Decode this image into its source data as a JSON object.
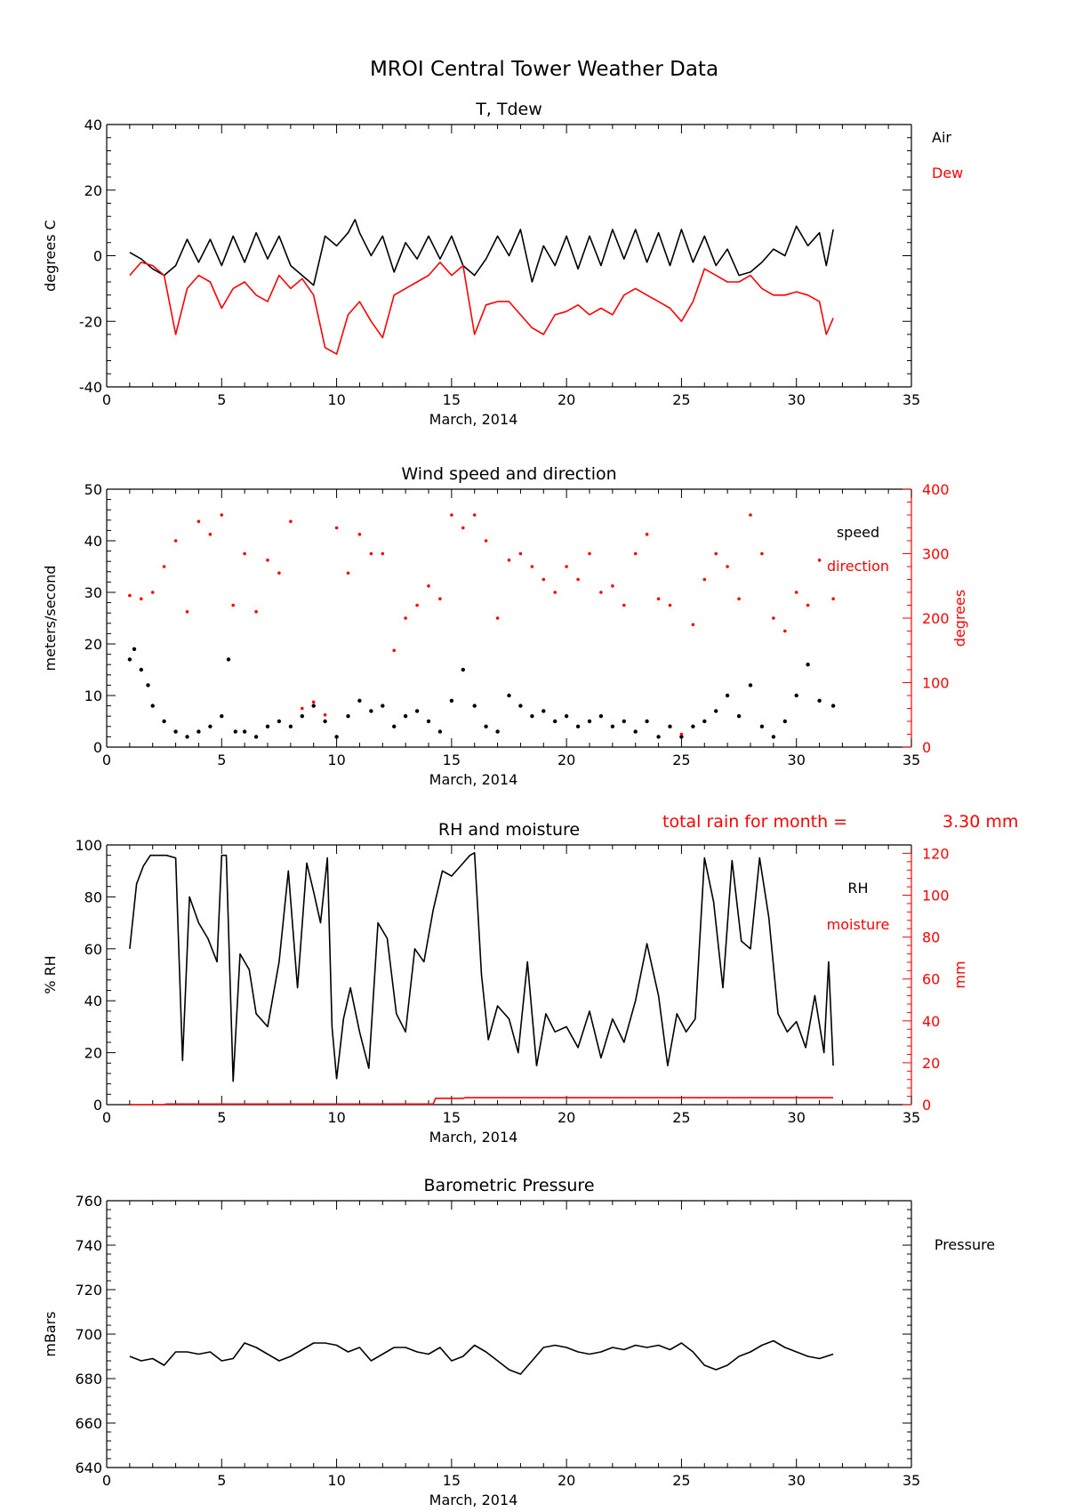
{
  "figure": {
    "title": "MROI Central Tower Weather Data",
    "rain_note": "total rain for month =",
    "rain_value": "3.30 mm"
  },
  "colors": {
    "black": "#000000",
    "red": "#ff0000"
  },
  "chart_data": [
    {
      "type": "line",
      "title": "T, Tdew",
      "xlabel": "March, 2014",
      "ylabel": "degrees C",
      "xlim": [
        0,
        35
      ],
      "ylim": [
        -40,
        40
      ],
      "xticks": [
        0,
        5,
        10,
        15,
        20,
        25,
        30,
        35
      ],
      "yticks": [
        -40,
        -20,
        0,
        20,
        40
      ],
      "series": [
        {
          "name": "Air",
          "color": "#000000",
          "x": [
            1.0,
            1.5,
            2.0,
            2.5,
            3.0,
            3.5,
            4.0,
            4.5,
            5.0,
            5.5,
            6.0,
            6.5,
            7.0,
            7.5,
            8.0,
            8.5,
            9.0,
            9.5,
            10.0,
            10.5,
            10.8,
            11.0,
            11.5,
            12.0,
            12.5,
            13.0,
            13.5,
            14.0,
            14.5,
            15.0,
            15.5,
            16.0,
            16.5,
            17.0,
            17.5,
            18.0,
            18.5,
            19.0,
            19.5,
            20.0,
            20.5,
            21.0,
            21.5,
            22.0,
            22.5,
            23.0,
            23.5,
            24.0,
            24.5,
            25.0,
            25.5,
            26.0,
            26.5,
            27.0,
            27.5,
            28.0,
            28.5,
            29.0,
            29.5,
            30.0,
            30.5,
            31.0,
            31.3,
            31.6
          ],
          "y": [
            1,
            -1,
            -4,
            -6,
            -3,
            5,
            -2,
            5,
            -3,
            6,
            -2,
            7,
            -1,
            6,
            -3,
            -6,
            -9,
            6,
            3,
            7,
            11,
            7,
            0,
            6,
            -5,
            4,
            -1,
            6,
            -1,
            6,
            -3,
            -6,
            -1,
            6,
            0,
            8,
            -8,
            3,
            -3,
            6,
            -4,
            6,
            -3,
            8,
            -1,
            8,
            -2,
            7,
            -3,
            8,
            -2,
            6,
            -3,
            2,
            -6,
            -5,
            -2,
            2,
            0,
            9,
            3,
            7,
            -3,
            8
          ]
        },
        {
          "name": "Dew",
          "color": "#ff0000",
          "x": [
            1.0,
            1.5,
            2.0,
            2.5,
            3.0,
            3.5,
            4.0,
            4.5,
            5.0,
            5.5,
            6.0,
            6.5,
            7.0,
            7.5,
            8.0,
            8.5,
            9.0,
            9.5,
            10.0,
            10.5,
            11.0,
            11.5,
            12.0,
            12.5,
            13.0,
            13.5,
            14.0,
            14.5,
            15.0,
            15.5,
            16.0,
            16.5,
            17.0,
            17.5,
            18.0,
            18.5,
            19.0,
            19.5,
            20.0,
            20.5,
            21.0,
            21.5,
            22.0,
            22.5,
            23.0,
            23.5,
            24.0,
            24.5,
            25.0,
            25.5,
            26.0,
            26.5,
            27.0,
            27.5,
            28.0,
            28.5,
            29.0,
            29.5,
            30.0,
            30.5,
            31.0,
            31.3,
            31.6
          ],
          "y": [
            -6,
            -2,
            -3,
            -6,
            -24,
            -10,
            -6,
            -8,
            -16,
            -10,
            -8,
            -12,
            -14,
            -6,
            -10,
            -7,
            -12,
            -28,
            -30,
            -18,
            -14,
            -20,
            -25,
            -12,
            -10,
            -8,
            -6,
            -2,
            -6,
            -3,
            -24,
            -15,
            -14,
            -14,
            -18,
            -22,
            -24,
            -18,
            -17,
            -15,
            -18,
            -16,
            -18,
            -12,
            -10,
            -12,
            -14,
            -16,
            -20,
            -14,
            -4,
            -6,
            -8,
            -8,
            -6,
            -10,
            -12,
            -12,
            -11,
            -12,
            -14,
            -24,
            -19
          ]
        }
      ],
      "legend": [
        "Air",
        "Dew"
      ]
    },
    {
      "type": "scatter",
      "title": "Wind speed and direction",
      "xlabel": "March, 2014",
      "ylabel": "meters/second",
      "ylabel_right": "degrees",
      "xlim": [
        0,
        35
      ],
      "ylim": [
        0,
        50
      ],
      "ylim_right": [
        0,
        400
      ],
      "xticks": [
        0,
        5,
        10,
        15,
        20,
        25,
        30,
        35
      ],
      "yticks": [
        0,
        10,
        20,
        30,
        40,
        50
      ],
      "yticks_right": [
        0,
        100,
        200,
        300,
        400
      ],
      "series": [
        {
          "name": "speed",
          "color": "#000000",
          "axis": "left",
          "x": [
            1.0,
            1.2,
            1.5,
            1.8,
            2.0,
            2.5,
            3.0,
            3.5,
            4.0,
            4.5,
            5.0,
            5.3,
            5.6,
            6.0,
            6.5,
            7.0,
            7.5,
            8.0,
            8.5,
            9.0,
            9.5,
            10.0,
            10.5,
            11.0,
            11.5,
            12.0,
            12.5,
            13.0,
            13.5,
            14.0,
            14.5,
            15.0,
            15.5,
            16.0,
            16.5,
            17.0,
            17.5,
            18.0,
            18.5,
            19.0,
            19.5,
            20.0,
            20.5,
            21.0,
            21.5,
            22.0,
            22.5,
            23.0,
            23.5,
            24.0,
            24.5,
            25.0,
            25.5,
            26.0,
            26.5,
            27.0,
            27.5,
            28.0,
            28.5,
            29.0,
            29.5,
            30.0,
            30.5,
            31.0,
            31.6
          ],
          "y": [
            17,
            19,
            15,
            12,
            8,
            5,
            3,
            2,
            3,
            4,
            6,
            17,
            3,
            3,
            2,
            4,
            5,
            4,
            6,
            8,
            5,
            2,
            6,
            9,
            7,
            8,
            4,
            6,
            7,
            5,
            3,
            9,
            15,
            8,
            4,
            3,
            10,
            8,
            6,
            7,
            5,
            6,
            4,
            5,
            6,
            4,
            5,
            3,
            5,
            2,
            4,
            2,
            4,
            5,
            7,
            10,
            6,
            12,
            4,
            2,
            5,
            10,
            16,
            9,
            8
          ]
        },
        {
          "name": "direction",
          "color": "#ff0000",
          "axis": "right",
          "x": [
            1.0,
            1.5,
            2.0,
            2.5,
            3.0,
            3.5,
            4.0,
            4.5,
            5.0,
            5.5,
            6.0,
            6.5,
            7.0,
            7.5,
            8.0,
            8.5,
            9.0,
            9.5,
            10.0,
            10.5,
            11.0,
            11.5,
            12.0,
            12.5,
            13.0,
            13.5,
            14.0,
            14.5,
            15.0,
            15.5,
            16.0,
            16.5,
            17.0,
            17.5,
            18.0,
            18.5,
            19.0,
            19.5,
            20.0,
            20.5,
            21.0,
            21.5,
            22.0,
            22.5,
            23.0,
            23.5,
            24.0,
            24.5,
            25.0,
            25.5,
            26.0,
            26.5,
            27.0,
            27.5,
            28.0,
            28.5,
            29.0,
            29.5,
            30.0,
            30.5,
            31.0,
            31.6
          ],
          "y": [
            235,
            230,
            240,
            280,
            320,
            210,
            350,
            330,
            360,
            220,
            300,
            210,
            290,
            270,
            350,
            60,
            70,
            50,
            340,
            270,
            330,
            300,
            300,
            150,
            200,
            220,
            250,
            230,
            360,
            340,
            360,
            320,
            200,
            290,
            300,
            280,
            260,
            240,
            280,
            260,
            300,
            240,
            250,
            220,
            300,
            330,
            230,
            220,
            20,
            190,
            260,
            300,
            280,
            230,
            360,
            300,
            200,
            180,
            240,
            220,
            290,
            230
          ]
        }
      ],
      "legend": [
        "speed",
        "direction"
      ]
    },
    {
      "type": "line",
      "title": "RH and moisture",
      "xlabel": "March, 2014",
      "ylabel": "% RH",
      "ylabel_right": "mm",
      "xlim": [
        0,
        35
      ],
      "ylim": [
        0,
        100
      ],
      "ylim_right": [
        0,
        124
      ],
      "xticks": [
        0,
        5,
        10,
        15,
        20,
        25,
        30,
        35
      ],
      "yticks": [
        0,
        20,
        40,
        60,
        80,
        100
      ],
      "yticks_right": [
        0,
        20,
        40,
        60,
        80,
        100,
        120
      ],
      "series": [
        {
          "name": "RH",
          "color": "#000000",
          "axis": "left",
          "x": [
            1.0,
            1.3,
            1.6,
            1.9,
            2.2,
            2.6,
            3.0,
            3.3,
            3.6,
            4.0,
            4.4,
            4.8,
            5.0,
            5.2,
            5.5,
            5.8,
            6.2,
            6.5,
            7.0,
            7.5,
            7.9,
            8.3,
            8.7,
            9.0,
            9.3,
            9.6,
            9.8,
            10.0,
            10.3,
            10.6,
            11.0,
            11.4,
            11.8,
            12.2,
            12.6,
            13.0,
            13.4,
            13.8,
            14.2,
            14.6,
            15.0,
            15.4,
            15.8,
            16.0,
            16.3,
            16.6,
            17.0,
            17.5,
            17.9,
            18.3,
            18.7,
            19.1,
            19.5,
            20.0,
            20.5,
            21.0,
            21.5,
            22.0,
            22.5,
            23.0,
            23.5,
            24.0,
            24.4,
            24.8,
            25.2,
            25.6,
            26.0,
            26.4,
            26.8,
            27.2,
            27.6,
            28.0,
            28.4,
            28.8,
            29.2,
            29.6,
            30.0,
            30.4,
            30.8,
            31.2,
            31.4,
            31.6
          ],
          "y": [
            60,
            85,
            92,
            96,
            96,
            96,
            95,
            17,
            80,
            70,
            64,
            55,
            96,
            96,
            9,
            58,
            52,
            35,
            30,
            55,
            90,
            45,
            93,
            82,
            70,
            95,
            30,
            10,
            33,
            45,
            28,
            14,
            70,
            64,
            35,
            28,
            60,
            55,
            75,
            90,
            88,
            92,
            96,
            97,
            50,
            25,
            38,
            33,
            20,
            55,
            15,
            35,
            28,
            30,
            22,
            36,
            18,
            33,
            24,
            40,
            62,
            42,
            15,
            35,
            28,
            33,
            95,
            78,
            45,
            94,
            63,
            60,
            95,
            72,
            35,
            28,
            32,
            22,
            42,
            20,
            55,
            15
          ]
        },
        {
          "name": "moisture",
          "color": "#ff0000",
          "axis": "right",
          "x": [
            1.0,
            2.5,
            2.6,
            14.2,
            14.3,
            15.5,
            15.6,
            31.6
          ],
          "y": [
            0,
            0,
            0.3,
            0.3,
            3.0,
            3.0,
            3.3,
            3.3
          ]
        }
      ],
      "legend": [
        "RH",
        "moisture"
      ]
    },
    {
      "type": "line",
      "title": "Barometric Pressure",
      "xlabel": "March, 2014",
      "ylabel": "mBars",
      "xlim": [
        0,
        35
      ],
      "ylim": [
        640,
        760
      ],
      "xticks": [
        0,
        5,
        10,
        15,
        20,
        25,
        30,
        35
      ],
      "yticks": [
        640,
        660,
        680,
        700,
        720,
        740,
        760
      ],
      "series": [
        {
          "name": "Pressure",
          "color": "#000000",
          "x": [
            1.0,
            1.5,
            2.0,
            2.5,
            3.0,
            3.5,
            4.0,
            4.5,
            5.0,
            5.5,
            6.0,
            6.5,
            7.0,
            7.5,
            8.0,
            8.5,
            9.0,
            9.5,
            10.0,
            10.5,
            11.0,
            11.5,
            12.0,
            12.5,
            13.0,
            13.5,
            14.0,
            14.5,
            15.0,
            15.5,
            16.0,
            16.5,
            17.0,
            17.5,
            18.0,
            18.5,
            19.0,
            19.5,
            20.0,
            20.5,
            21.0,
            21.5,
            22.0,
            22.5,
            23.0,
            23.5,
            24.0,
            24.5,
            25.0,
            25.5,
            26.0,
            26.5,
            27.0,
            27.5,
            28.0,
            28.5,
            29.0,
            29.5,
            30.0,
            30.5,
            31.0,
            31.6
          ],
          "y": [
            690,
            688,
            689,
            686,
            692,
            692,
            691,
            692,
            688,
            689,
            696,
            694,
            691,
            688,
            690,
            693,
            696,
            696,
            695,
            692,
            694,
            688,
            691,
            694,
            694,
            692,
            691,
            694,
            688,
            690,
            695,
            692,
            688,
            684,
            682,
            688,
            694,
            695,
            694,
            692,
            691,
            692,
            694,
            693,
            695,
            694,
            695,
            693,
            696,
            692,
            686,
            684,
            686,
            690,
            692,
            695,
            697,
            694,
            692,
            690,
            689,
            691
          ]
        }
      ],
      "legend": [
        "Pressure"
      ]
    }
  ]
}
